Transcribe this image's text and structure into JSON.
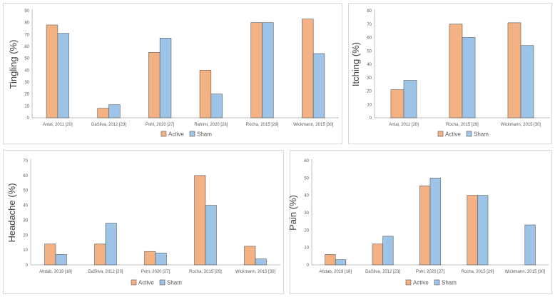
{
  "colors": {
    "active": "#f4b183",
    "sham": "#9dc3e6",
    "active_edge": "#404040",
    "sham_edge": "#404040",
    "axis": "#bfbfbf"
  },
  "chart_data": [
    {
      "id": "tingling",
      "type": "bar",
      "title": "",
      "xlabel": "",
      "ylabel": "Tingling (%)",
      "ylim": [
        0,
        90
      ],
      "yticks": [
        0,
        10,
        20,
        30,
        40,
        50,
        60,
        70,
        80,
        90
      ],
      "legend_position": "bottom",
      "categories": [
        "Antal, 2011 [20]",
        "DaSilva, 2012 [23]",
        "Pohl, 2020 [27]",
        "Rahimi, 2020 [28]",
        "Rocha, 2015 [29]",
        "Wickmann, 2015 [30]"
      ],
      "series": [
        {
          "name": "Active",
          "values": [
            78,
            8,
            55,
            40,
            80,
            83
          ]
        },
        {
          "name": "Sham",
          "values": [
            71,
            11,
            67,
            20,
            80,
            54
          ]
        }
      ]
    },
    {
      "id": "itching",
      "type": "bar",
      "title": "",
      "xlabel": "",
      "ylabel": "Itching (%)",
      "ylim": [
        0,
        80
      ],
      "yticks": [
        0,
        10,
        20,
        30,
        40,
        50,
        60,
        70,
        80
      ],
      "legend_position": "bottom",
      "categories": [
        "Antal, 2011 [20]",
        "Rocha, 2015 [29]",
        "Wickmann, 2015 [30]"
      ],
      "series": [
        {
          "name": "Active",
          "values": [
            21,
            70,
            71
          ]
        },
        {
          "name": "Sham",
          "values": [
            28,
            60,
            54
          ]
        }
      ]
    },
    {
      "id": "headache",
      "type": "bar",
      "title": "",
      "xlabel": "",
      "ylabel": "Headache (%)",
      "ylim": [
        0,
        70
      ],
      "yticks": [
        0,
        10,
        20,
        30,
        40,
        50,
        60,
        70
      ],
      "legend_position": "bottom",
      "categories": [
        "Ahdab, 2019 [18]",
        "DaSilva, 2012 [23]",
        "Pohl, 2020 [27]",
        "Rocha, 2015 [29]",
        "Wickmann, 2015 [30]"
      ],
      "series": [
        {
          "name": "Active",
          "values": [
            14,
            14,
            9,
            60,
            12.5
          ]
        },
        {
          "name": "Sham",
          "values": [
            7,
            28,
            8,
            40,
            4
          ]
        }
      ]
    },
    {
      "id": "pain",
      "type": "bar",
      "title": "",
      "xlabel": "",
      "ylabel": "Pain (%)",
      "ylim": [
        0,
        60
      ],
      "yticks": [
        0,
        10,
        20,
        30,
        40,
        50,
        60
      ],
      "legend_position": "bottom",
      "categories": [
        "Ahdab, 2019 [18]",
        "DaSilva, 2012 [23]",
        "Pohl, 2020 [27]",
        "Rocha, 2015 [29]",
        "Wickmann, 2015 [30]"
      ],
      "series": [
        {
          "name": "Active",
          "values": [
            6,
            12,
            45.5,
            40,
            0
          ]
        },
        {
          "name": "Sham",
          "values": [
            3,
            16.5,
            50,
            40,
            23
          ]
        }
      ]
    }
  ]
}
